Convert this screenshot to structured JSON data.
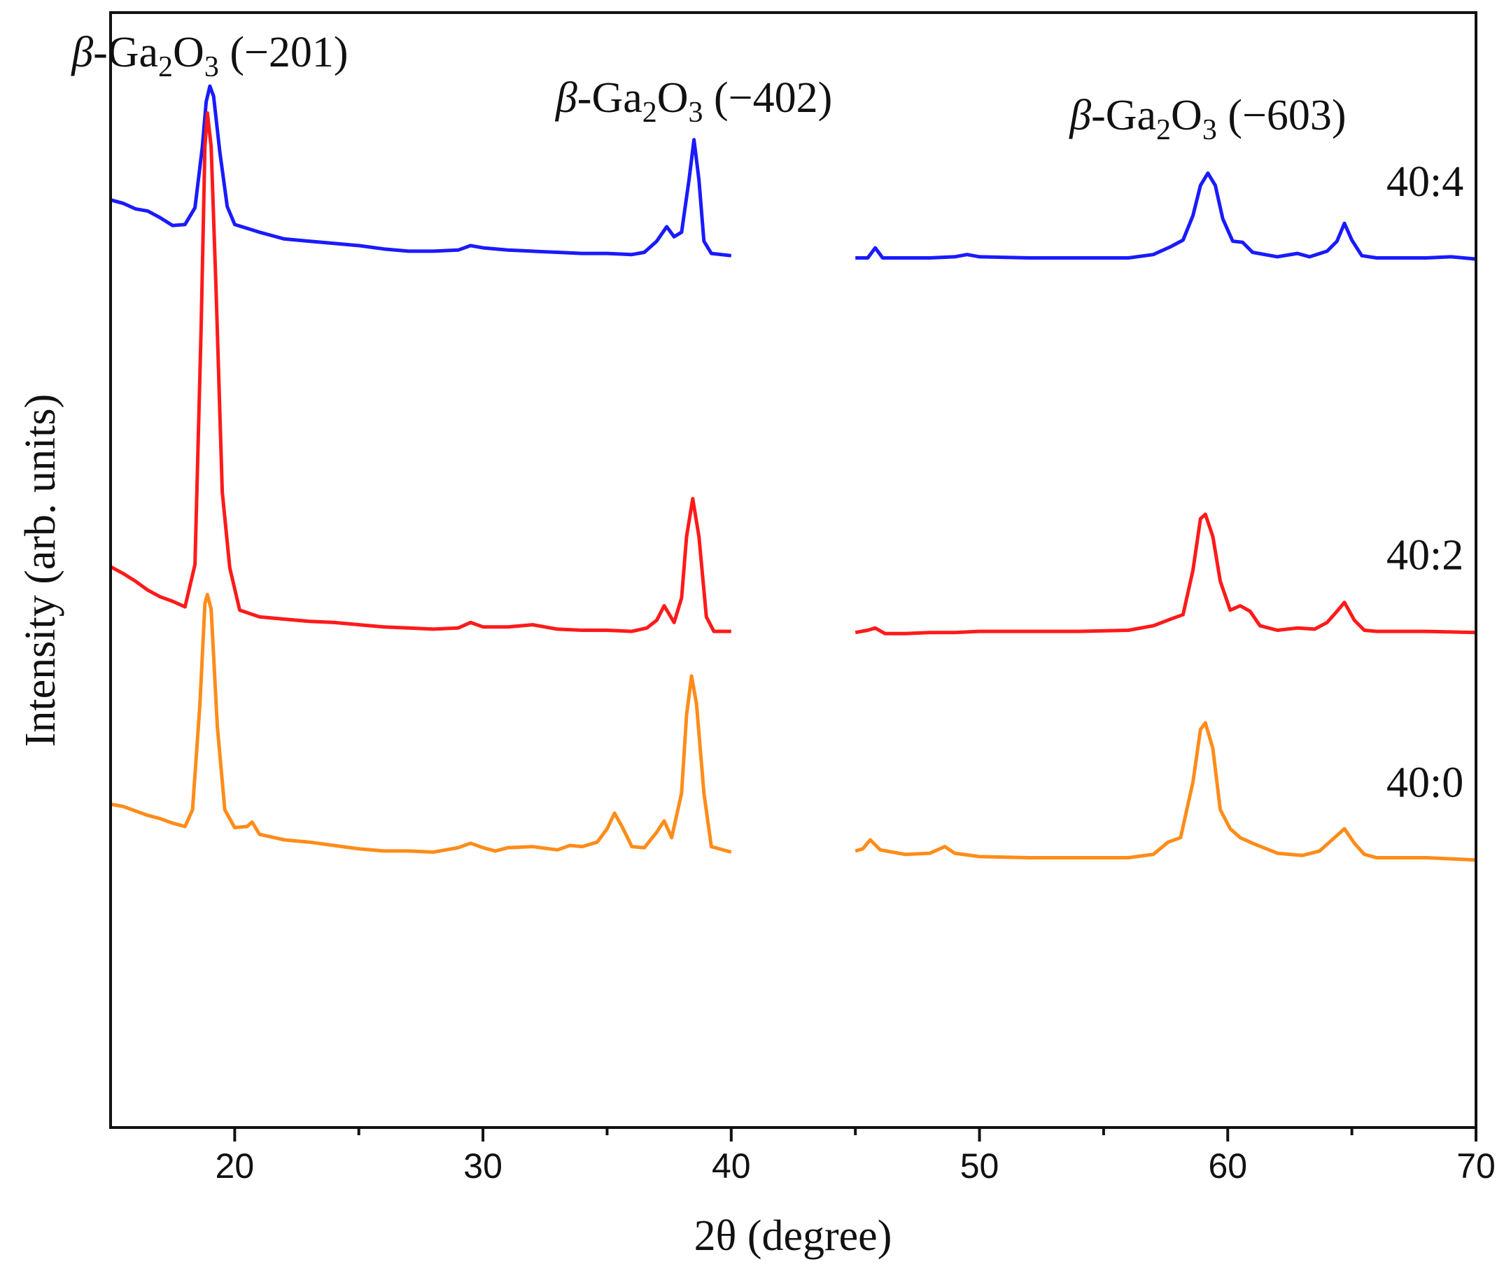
{
  "chart_data": {
    "type": "line",
    "title": "",
    "xlabel": "2θ (degree)",
    "ylabel": "Intensity (arb. units)",
    "xlim": [
      15,
      70
    ],
    "ylim": [
      0,
      100
    ],
    "x_ticks": [
      20,
      30,
      40,
      50,
      60,
      70
    ],
    "x_minor_ticks": [
      25,
      35,
      45,
      55,
      65
    ],
    "y_ticks": "none",
    "grid": false,
    "legend": "none",
    "x_gap": [
      40,
      45
    ],
    "peak_annotations": [
      {
        "prefix": "β",
        "rest": "-Ga",
        "sub1": "2",
        "mid": "O",
        "sub2": "3",
        "hkl": " (−201)",
        "at_x": 19
      },
      {
        "prefix": "β",
        "rest": "-Ga",
        "sub1": "2",
        "mid": "O",
        "sub2": "3",
        "hkl": " (−402)",
        "at_x": 38.5
      },
      {
        "prefix": "β",
        "rest": "-Ga",
        "sub1": "2",
        "mid": "O",
        "sub2": "3",
        "hkl": " (−603)",
        "at_x": 59.2
      }
    ],
    "series": [
      {
        "name": "40:4",
        "color": "#1a1aff",
        "points": [
          [
            15,
            83.2
          ],
          [
            15.5,
            82.9
          ],
          [
            16,
            82.4
          ],
          [
            16.5,
            82.2
          ],
          [
            17,
            81.6
          ],
          [
            17.5,
            80.9
          ],
          [
            18,
            81.0
          ],
          [
            18.4,
            82.5
          ],
          [
            18.7,
            88
          ],
          [
            18.85,
            92
          ],
          [
            19.0,
            93.4
          ],
          [
            19.15,
            92.5
          ],
          [
            19.4,
            87.5
          ],
          [
            19.7,
            82.6
          ],
          [
            20,
            81.0
          ],
          [
            21,
            80.3
          ],
          [
            22,
            79.7
          ],
          [
            23,
            79.5
          ],
          [
            24,
            79.3
          ],
          [
            25,
            79.1
          ],
          [
            26,
            78.8
          ],
          [
            27,
            78.6
          ],
          [
            28,
            78.6
          ],
          [
            29,
            78.7
          ],
          [
            29.5,
            79.1
          ],
          [
            30,
            78.9
          ],
          [
            31,
            78.7
          ],
          [
            32,
            78.6
          ],
          [
            33,
            78.5
          ],
          [
            34,
            78.4
          ],
          [
            35,
            78.4
          ],
          [
            36,
            78.3
          ],
          [
            36.5,
            78.5
          ],
          [
            37,
            79.5
          ],
          [
            37.4,
            80.8
          ],
          [
            37.7,
            79.9
          ],
          [
            38.0,
            80.3
          ],
          [
            38.3,
            85
          ],
          [
            38.5,
            88.6
          ],
          [
            38.7,
            85
          ],
          [
            38.9,
            79.5
          ],
          [
            39.2,
            78.4
          ],
          [
            40,
            78.2
          ],
          [
            45,
            78.0
          ],
          [
            45.5,
            78.0
          ],
          [
            45.8,
            78.9
          ],
          [
            46.1,
            78.0
          ],
          [
            47,
            78.0
          ],
          [
            48,
            78.0
          ],
          [
            49,
            78.1
          ],
          [
            49.5,
            78.3
          ],
          [
            50,
            78.1
          ],
          [
            52,
            78.0
          ],
          [
            54,
            78.0
          ],
          [
            56,
            78.0
          ],
          [
            57,
            78.3
          ],
          [
            57.7,
            79.0
          ],
          [
            58.2,
            79.6
          ],
          [
            58.6,
            81.8
          ],
          [
            58.9,
            84.5
          ],
          [
            59.2,
            85.6
          ],
          [
            59.5,
            84.5
          ],
          [
            59.8,
            81.5
          ],
          [
            60.2,
            79.5
          ],
          [
            60.6,
            79.4
          ],
          [
            61,
            78.5
          ],
          [
            62,
            78.1
          ],
          [
            62.8,
            78.4
          ],
          [
            63.3,
            78.1
          ],
          [
            64,
            78.6
          ],
          [
            64.4,
            79.5
          ],
          [
            64.7,
            81.1
          ],
          [
            65,
            79.6
          ],
          [
            65.4,
            78.2
          ],
          [
            66,
            78.0
          ],
          [
            68,
            78.0
          ],
          [
            69,
            78.1
          ],
          [
            70,
            77.9
          ]
        ]
      },
      {
        "name": "40:2",
        "color": "#ff1a1a",
        "points": [
          [
            15,
            50.3
          ],
          [
            15.5,
            49.7
          ],
          [
            16,
            49.0
          ],
          [
            16.5,
            48.2
          ],
          [
            17,
            47.6
          ],
          [
            17.5,
            47.2
          ],
          [
            18,
            46.7
          ],
          [
            18.4,
            50.5
          ],
          [
            18.65,
            72
          ],
          [
            18.8,
            88
          ],
          [
            18.9,
            91.0
          ],
          [
            19.05,
            88
          ],
          [
            19.25,
            75
          ],
          [
            19.5,
            57
          ],
          [
            19.8,
            50.2
          ],
          [
            20.2,
            46.4
          ],
          [
            21,
            45.8
          ],
          [
            22,
            45.6
          ],
          [
            23,
            45.4
          ],
          [
            24,
            45.3
          ],
          [
            25,
            45.1
          ],
          [
            26,
            44.9
          ],
          [
            27,
            44.8
          ],
          [
            28,
            44.7
          ],
          [
            29,
            44.8
          ],
          [
            29.5,
            45.3
          ],
          [
            30,
            44.9
          ],
          [
            31,
            44.9
          ],
          [
            32,
            45.1
          ],
          [
            33,
            44.7
          ],
          [
            34,
            44.6
          ],
          [
            35,
            44.6
          ],
          [
            36,
            44.5
          ],
          [
            36.6,
            44.8
          ],
          [
            37.0,
            45.5
          ],
          [
            37.3,
            46.8
          ],
          [
            37.7,
            45.3
          ],
          [
            38.0,
            47.5
          ],
          [
            38.2,
            53
          ],
          [
            38.45,
            56.4
          ],
          [
            38.7,
            53
          ],
          [
            39.0,
            45.8
          ],
          [
            39.3,
            44.5
          ],
          [
            40,
            44.5
          ],
          [
            45,
            44.4
          ],
          [
            45.5,
            44.6
          ],
          [
            45.8,
            44.8
          ],
          [
            46.2,
            44.3
          ],
          [
            47,
            44.3
          ],
          [
            48,
            44.4
          ],
          [
            49,
            44.4
          ],
          [
            50,
            44.5
          ],
          [
            52,
            44.5
          ],
          [
            54,
            44.5
          ],
          [
            56,
            44.6
          ],
          [
            57,
            45.0
          ],
          [
            57.7,
            45.6
          ],
          [
            58.2,
            46.0
          ],
          [
            58.6,
            50
          ],
          [
            58.9,
            54.6
          ],
          [
            59.1,
            55.0
          ],
          [
            59.4,
            53
          ],
          [
            59.7,
            49
          ],
          [
            60.1,
            46.4
          ],
          [
            60.5,
            46.8
          ],
          [
            60.9,
            46.3
          ],
          [
            61.3,
            45.0
          ],
          [
            62,
            44.6
          ],
          [
            62.8,
            44.8
          ],
          [
            63.5,
            44.7
          ],
          [
            64.0,
            45.3
          ],
          [
            64.4,
            46.3
          ],
          [
            64.7,
            47.1
          ],
          [
            65.1,
            45.5
          ],
          [
            65.5,
            44.6
          ],
          [
            66,
            44.5
          ],
          [
            68,
            44.5
          ],
          [
            70,
            44.4
          ]
        ]
      },
      {
        "name": "40:0",
        "color": "#ff8c1a",
        "points": [
          [
            15,
            29.0
          ],
          [
            15.5,
            28.8
          ],
          [
            16,
            28.4
          ],
          [
            16.5,
            28.0
          ],
          [
            17,
            27.7
          ],
          [
            17.5,
            27.3
          ],
          [
            18,
            27.0
          ],
          [
            18.3,
            28.5
          ],
          [
            18.6,
            38
          ],
          [
            18.8,
            47.0
          ],
          [
            18.9,
            47.8
          ],
          [
            19.05,
            46.5
          ],
          [
            19.3,
            36
          ],
          [
            19.6,
            28.5
          ],
          [
            20,
            26.9
          ],
          [
            20.5,
            27.0
          ],
          [
            20.7,
            27.4
          ],
          [
            21,
            26.3
          ],
          [
            22,
            25.8
          ],
          [
            23,
            25.6
          ],
          [
            24,
            25.3
          ],
          [
            25,
            25.0
          ],
          [
            26,
            24.8
          ],
          [
            27,
            24.8
          ],
          [
            28,
            24.7
          ],
          [
            29,
            25.1
          ],
          [
            29.5,
            25.5
          ],
          [
            30,
            25.1
          ],
          [
            30.5,
            24.8
          ],
          [
            31,
            25.1
          ],
          [
            32,
            25.2
          ],
          [
            33,
            24.9
          ],
          [
            33.5,
            25.3
          ],
          [
            34,
            25.2
          ],
          [
            34.6,
            25.6
          ],
          [
            35.0,
            26.8
          ],
          [
            35.3,
            28.2
          ],
          [
            35.6,
            27.0
          ],
          [
            36,
            25.2
          ],
          [
            36.5,
            25.1
          ],
          [
            37.0,
            26.5
          ],
          [
            37.3,
            27.5
          ],
          [
            37.6,
            26.0
          ],
          [
            38.0,
            30
          ],
          [
            38.2,
            37
          ],
          [
            38.4,
            40.5
          ],
          [
            38.6,
            38
          ],
          [
            38.9,
            30
          ],
          [
            39.2,
            25.2
          ],
          [
            40,
            24.7
          ],
          [
            45,
            24.8
          ],
          [
            45.3,
            25.0
          ],
          [
            45.6,
            25.8
          ],
          [
            46,
            24.9
          ],
          [
            47,
            24.5
          ],
          [
            48,
            24.6
          ],
          [
            48.6,
            25.2
          ],
          [
            49,
            24.6
          ],
          [
            50,
            24.3
          ],
          [
            52,
            24.2
          ],
          [
            54,
            24.2
          ],
          [
            56,
            24.2
          ],
          [
            57,
            24.5
          ],
          [
            57.6,
            25.6
          ],
          [
            58.1,
            26.0
          ],
          [
            58.6,
            31
          ],
          [
            58.9,
            35.7
          ],
          [
            59.1,
            36.3
          ],
          [
            59.4,
            34
          ],
          [
            59.7,
            28.5
          ],
          [
            60.1,
            26.8
          ],
          [
            60.5,
            26.0
          ],
          [
            61.0,
            25.5
          ],
          [
            62,
            24.6
          ],
          [
            63,
            24.4
          ],
          [
            63.7,
            24.8
          ],
          [
            64.3,
            26.0
          ],
          [
            64.7,
            26.8
          ],
          [
            65.1,
            25.5
          ],
          [
            65.5,
            24.5
          ],
          [
            66,
            24.2
          ],
          [
            68,
            24.2
          ],
          [
            70,
            24.0
          ]
        ]
      }
    ]
  }
}
